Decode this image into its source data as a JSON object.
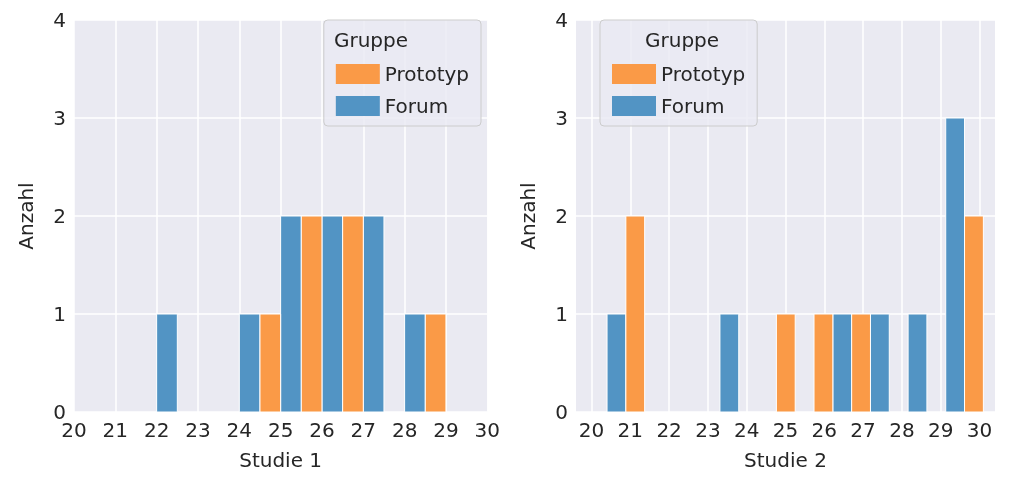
{
  "chart_data": [
    {
      "type": "histogram",
      "xlabel": "Studie 1",
      "ylabel": "Anzahl",
      "legend_title": "Gruppe",
      "legend": "top right",
      "grid": true,
      "bins": [
        20,
        21,
        22,
        23,
        24,
        25,
        26,
        27,
        28,
        29,
        30
      ],
      "series": [
        {
          "name": "Forum",
          "color": "#5294c4",
          "values": [
            0,
            0,
            1,
            0,
            1,
            2,
            2,
            2,
            1,
            0
          ]
        },
        {
          "name": "Prototyp",
          "color": "#fa9a47",
          "values": [
            0,
            0,
            0,
            0,
            1,
            2,
            2,
            0,
            1,
            0
          ]
        }
      ],
      "xlim": [
        20,
        30
      ],
      "xticks": [
        20,
        21,
        22,
        23,
        24,
        25,
        26,
        27,
        28,
        29,
        30
      ],
      "ylim": [
        0,
        4
      ],
      "yticks": [
        0,
        1,
        2,
        3,
        4
      ]
    },
    {
      "type": "histogram",
      "xlabel": "Studie 2",
      "ylabel": "Anzahl",
      "legend_title": "Gruppe",
      "legend": "top left",
      "grid": true,
      "bins": [
        20.4,
        21.37,
        22.34,
        23.31,
        24.28,
        25.25,
        26.22,
        27.19,
        28.16,
        29.13,
        30.1
      ],
      "series": [
        {
          "name": "Forum",
          "color": "#5294c4",
          "values": [
            1,
            0,
            0,
            1,
            0,
            0,
            1,
            1,
            1,
            3
          ]
        },
        {
          "name": "Prototyp",
          "color": "#fa9a47",
          "values": [
            2,
            0,
            0,
            0,
            1,
            1,
            1,
            0,
            0,
            2
          ]
        }
      ],
      "xlim": [
        19.6,
        30.4
      ],
      "xticks": [
        20,
        21,
        22,
        23,
        24,
        25,
        26,
        27,
        28,
        29,
        30
      ],
      "ylim": [
        0,
        4
      ],
      "yticks": [
        0,
        1,
        2,
        3,
        4
      ]
    }
  ]
}
